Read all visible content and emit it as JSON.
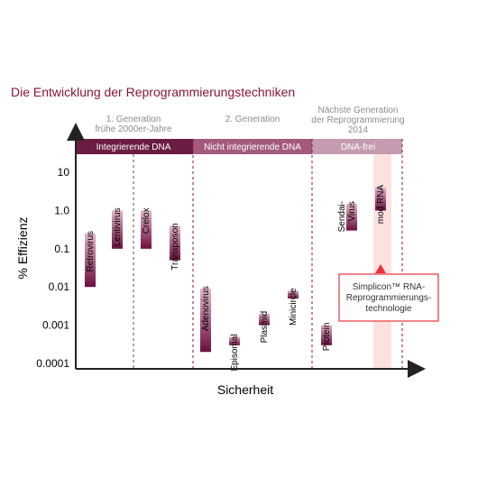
{
  "chart_data": {
    "type": "range-bar",
    "title": "Die Entwicklung der Reprogrammierungstechniken",
    "xlabel": "Sicherheit",
    "ylabel": "% Effizienz",
    "yscale": "log",
    "ylim": [
      0.0001,
      10
    ],
    "yticks": [
      "10",
      "1.0",
      "0.1",
      "0.01",
      "0.001",
      "0.0001"
    ],
    "generations": [
      {
        "label": "1. Generation\nfrühe 2000er-Jahre",
        "band": "Integrierende DNA",
        "color": "#6b1c42"
      },
      {
        "label": "2. Generation",
        "band": "Nicht integrierende DNA",
        "color": "#a35a7d"
      },
      {
        "label": "Nächste Generation\nder Reprogrammierung\n2014",
        "band": "DNA-frei",
        "color": "#c49bb0"
      }
    ],
    "techniques": [
      {
        "name": "Retrovirus",
        "min": 0.01,
        "max": 0.25,
        "group": 0
      },
      {
        "name": "Lentivirus",
        "min": 0.1,
        "max": 1.0,
        "group": 0
      },
      {
        "name": "Crelox",
        "min": 0.1,
        "max": 1.0,
        "group": 0
      },
      {
        "name": "Transposon",
        "min": 0.05,
        "max": 0.4,
        "group": 0
      },
      {
        "name": "Adenovirus",
        "min": 0.0002,
        "max": 0.009,
        "group": 1
      },
      {
        "name": "Episomal",
        "min": 0.0003,
        "max": 0.0005,
        "group": 1
      },
      {
        "name": "Plasmid",
        "min": 0.001,
        "max": 0.002,
        "group": 1
      },
      {
        "name": "Minicircle",
        "min": 0.005,
        "max": 0.008,
        "group": 1
      },
      {
        "name": "Protein",
        "min": 0.0003,
        "max": 0.001,
        "group": 2
      },
      {
        "name": "Sendai-\nVirus",
        "min": 0.3,
        "max": 1.5,
        "group": 2
      },
      {
        "name": "mod RNA",
        "min": 1.0,
        "max": 4.0,
        "group": 2
      }
    ],
    "callout": {
      "text": "Simplicon™ RNA-\nReprogrammierungs-\ntechnologie",
      "color": "#e8343b"
    }
  }
}
